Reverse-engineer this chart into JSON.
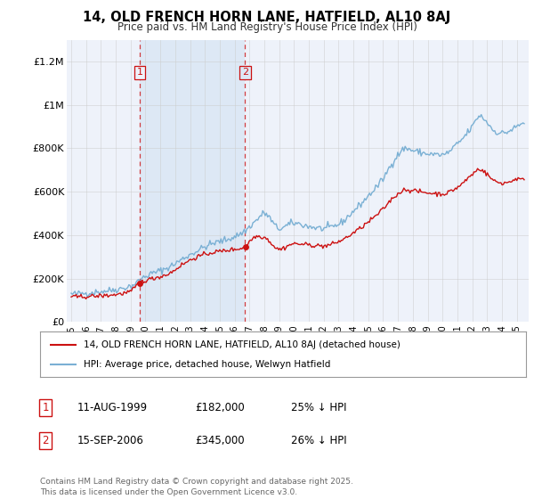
{
  "title": "14, OLD FRENCH HORN LANE, HATFIELD, AL10 8AJ",
  "subtitle": "Price paid vs. HM Land Registry's House Price Index (HPI)",
  "ylim": [
    0,
    1300000
  ],
  "yticks": [
    0,
    200000,
    400000,
    600000,
    800000,
    1000000,
    1200000
  ],
  "ytick_labels": [
    "£0",
    "£200K",
    "£400K",
    "£600K",
    "£800K",
    "£1M",
    "£1.2M"
  ],
  "hpi_color": "#7ab0d4",
  "price_color": "#cc1111",
  "transaction1": {
    "label": "1",
    "date": "11-AUG-1999",
    "price": "£182,000",
    "note": "25% ↓ HPI"
  },
  "transaction2": {
    "label": "2",
    "date": "15-SEP-2006",
    "price": "£345,000",
    "note": "26% ↓ HPI"
  },
  "t1_year": 1999.62,
  "t2_year": 2006.71,
  "legend_line1": "14, OLD FRENCH HORN LANE, HATFIELD, AL10 8AJ (detached house)",
  "legend_line2": "HPI: Average price, detached house, Welwyn Hatfield",
  "footer": "Contains HM Land Registry data © Crown copyright and database right 2025.\nThis data is licensed under the Open Government Licence v3.0.",
  "background_color": "#ffffff",
  "plot_bg_color": "#eef2fa",
  "shade_color": "#dde8f5",
  "grid_color": "#cccccc",
  "x_start": 1995.0,
  "x_end": 2025.5,
  "xtick_years": [
    1995,
    1996,
    1997,
    1998,
    1999,
    2000,
    2001,
    2002,
    2003,
    2004,
    2005,
    2006,
    2007,
    2008,
    2009,
    2010,
    2011,
    2012,
    2013,
    2014,
    2015,
    2016,
    2017,
    2018,
    2019,
    2020,
    2021,
    2022,
    2023,
    2024,
    2025
  ]
}
